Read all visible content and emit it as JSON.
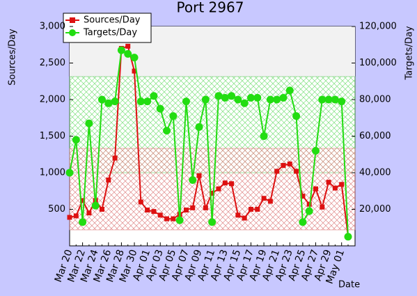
{
  "chart_data": {
    "type": "line",
    "title": "Port 2967",
    "ylabel": "Sources/Day",
    "y2label": "Targets/Day",
    "xlabel": "Date",
    "categories": [
      "Mar 20",
      null,
      "Mar 22",
      null,
      "Mar 24",
      null,
      "Mar 26",
      null,
      "Mar 28",
      null,
      "Mar 30",
      null,
      "Apr 01",
      null,
      "Apr 03",
      null,
      "Apr 05",
      null,
      "Apr 07",
      null,
      "Apr 09",
      null,
      "Apr 11",
      null,
      "Apr 13",
      null,
      "Apr 15",
      null,
      "Apr 17",
      null,
      "Apr 19",
      null,
      "Apr 21",
      null,
      "Apr 23",
      null,
      "Apr 25",
      null,
      "Apr 27",
      null,
      "Apr 29",
      null,
      "May 01",
      null
    ],
    "series": [
      {
        "name": "Sources/Day",
        "color": "#dd1111",
        "marker": "square",
        "values": [
          390,
          410,
          620,
          450,
          620,
          500,
          900,
          1200,
          2700,
          2730,
          2390,
          600,
          490,
          470,
          420,
          370,
          370,
          430,
          490,
          520,
          960,
          520,
          720,
          780,
          860,
          850,
          420,
          380,
          500,
          500,
          650,
          610,
          1020,
          1100,
          1120,
          1020,
          680,
          570,
          780,
          530,
          870,
          790,
          840,
          130
        ]
      },
      {
        "name": "Targets/Day",
        "color": "#22dd11",
        "marker": "circle",
        "axis": "y2",
        "values": [
          40000,
          58000,
          13000,
          67000,
          22000,
          80000,
          78000,
          79000,
          107000,
          105000,
          103000,
          79000,
          79000,
          82000,
          75000,
          63000,
          71000,
          14000,
          79000,
          36000,
          65000,
          80000,
          13000,
          82000,
          81000,
          82000,
          80000,
          78000,
          81000,
          81000,
          60000,
          80000,
          80000,
          81000,
          85000,
          71000,
          13000,
          19000,
          52000,
          80000,
          80000,
          80000,
          79000,
          5000
        ]
      }
    ],
    "ylim": [
      0,
      3000
    ],
    "yticks": [
      500,
      {
        "value": 1000,
        "label": "1,000"
      },
      {
        "value": 1500,
        "label": "1,500"
      },
      {
        "value": 2000,
        "label": "2,000"
      },
      {
        "value": 2500,
        "label": "2,500"
      },
      {
        "value": 3000,
        "label": "3,000"
      }
    ],
    "y2lim": [
      0,
      120000
    ],
    "y2ticks": [
      {
        "value": 20000,
        "label": "20,000"
      },
      {
        "value": 40000,
        "label": "40,000"
      },
      {
        "value": 60000,
        "label": "60,000"
      },
      {
        "value": 80000,
        "label": "80,000"
      },
      {
        "value": 100000,
        "label": "100,000"
      },
      {
        "value": 120000,
        "label": "120,000"
      }
    ],
    "legend": "upper left"
  }
}
